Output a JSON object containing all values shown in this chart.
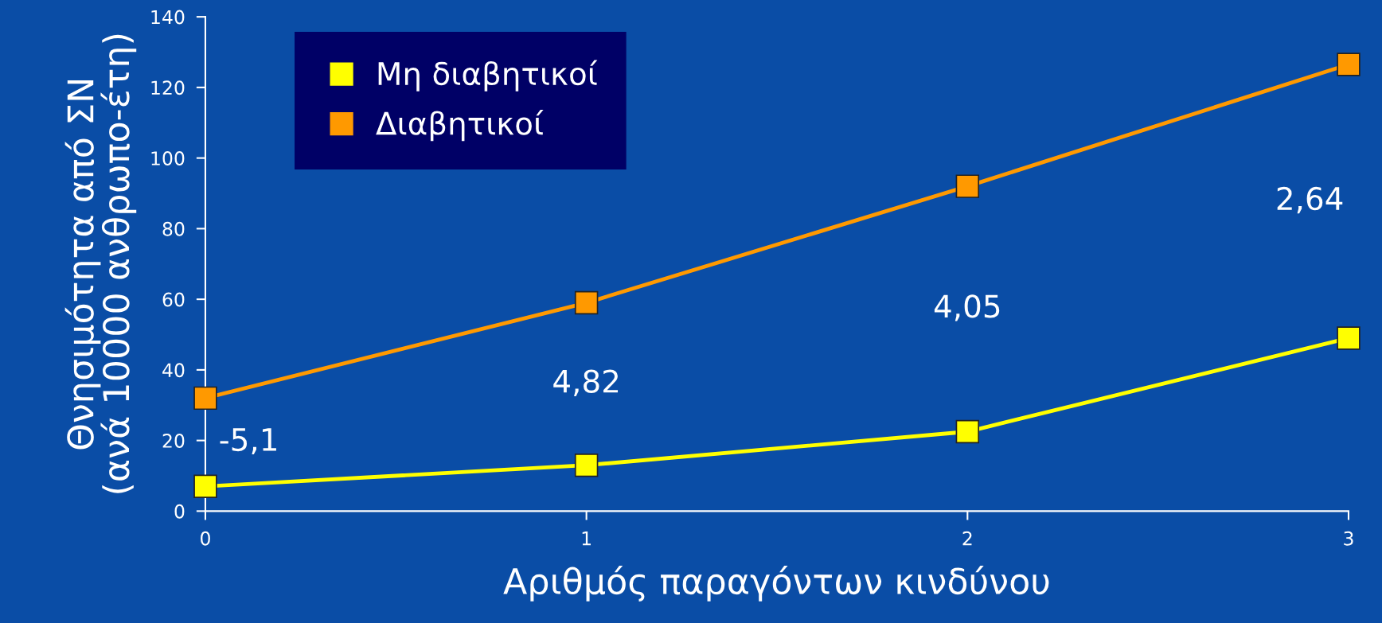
{
  "chart_data": {
    "type": "line",
    "xlabel": "Αριθμός παραγόντων κινδύνου",
    "ylabel": "Θνησιμότητα από ΣΝ\n(ανά 10000 ανθρωπο-έτη)",
    "x": [
      0,
      1,
      2,
      3
    ],
    "series": [
      {
        "name": "Μη διαβητικοί",
        "color": "#ffff00",
        "values": [
          7,
          13,
          22.5,
          49
        ]
      },
      {
        "name": "Διαβητικοί",
        "color": "#ff9900",
        "values": [
          32,
          59,
          92,
          126.5
        ]
      }
    ],
    "xlim": [
      0,
      3
    ],
    "xticks": [
      0,
      1,
      2,
      3
    ],
    "ylim": [
      0,
      140
    ],
    "yticks": [
      0,
      20,
      40,
      60,
      80,
      100,
      120,
      140
    ],
    "annotations": [
      "-5,1",
      "4,82",
      "4,05",
      "2,64"
    ],
    "legend": "top left",
    "marker": "square",
    "line_style": "solid",
    "grid": false
  }
}
